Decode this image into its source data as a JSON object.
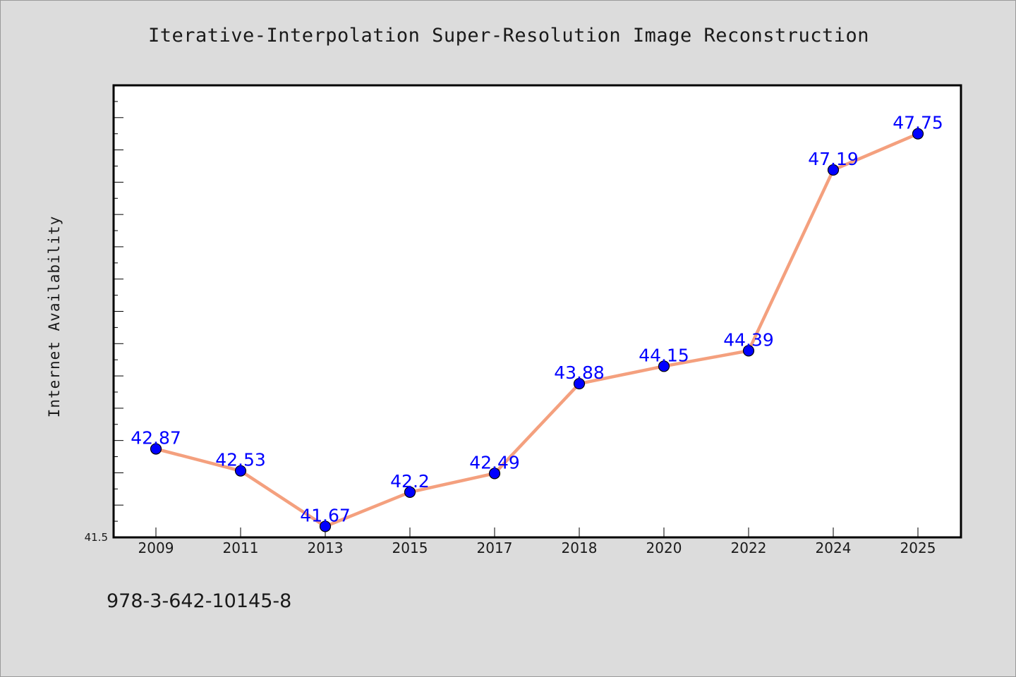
{
  "chart_data": {
    "type": "line",
    "title": "Iterative-Interpolation Super-Resolution Image Reconstruction",
    "xlabel": "",
    "ylabel": "Internet Availability",
    "categories": [
      "2009",
      "2011",
      "2013",
      "2015",
      "2017",
      "2018",
      "2020",
      "2022",
      "2024",
      "2025"
    ],
    "series": [
      {
        "values": [
          42.87,
          42.53,
          41.67,
          42.2,
          42.49,
          43.88,
          44.15,
          44.39,
          47.19,
          47.75
        ],
        "data_labels": [
          "42.87",
          "42.53",
          "41.67",
          "42.2",
          "42.49",
          "43.88",
          "44.15",
          "44.39",
          "47.19",
          "47.75"
        ]
      }
    ],
    "y_tick_labels": [
      "41.5"
    ],
    "ylim": [
      41.5,
      48.5
    ],
    "grid": false,
    "legend": "none",
    "colors": {
      "line": "#f4a07e",
      "marker": "#0000ff",
      "marker_edge": "#000000",
      "data_label": "#0000ff",
      "plot_background": "#ffffff",
      "figure_background": "#dcdcdc"
    }
  },
  "footer_text": "978-3-642-10145-8"
}
